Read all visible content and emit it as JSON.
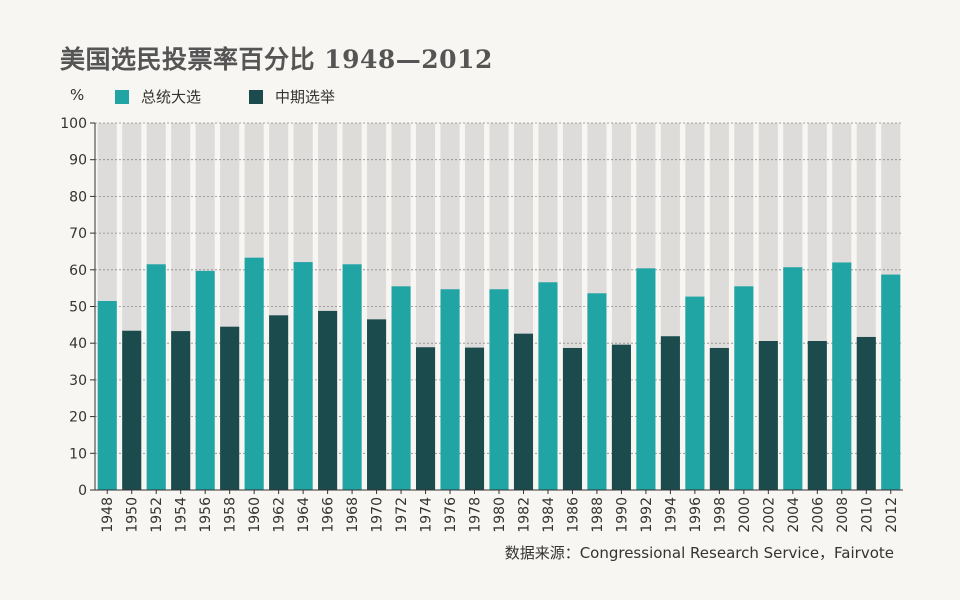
{
  "title": "美国选民投票率百分比 1948—2012",
  "source": "数据来源：Congressional Research Service，Fairvote",
  "colors": {
    "presidential": "#21a4a4",
    "midterm": "#1b4b4c",
    "background_bar": "#dedcdb",
    "page_background": "#f8f6f2"
  },
  "chart_data": {
    "type": "bar",
    "y_unit_label": "%",
    "ylim": [
      0,
      100
    ],
    "yticks": [
      0,
      10,
      20,
      30,
      40,
      50,
      60,
      70,
      80,
      90,
      100
    ],
    "grid": true,
    "legend_position": "top-left",
    "legend": [
      {
        "key": "presidential",
        "label": "总统大选"
      },
      {
        "key": "midterm",
        "label": "中期选举"
      }
    ],
    "categories": [
      "1948",
      "1950",
      "1952",
      "1954",
      "1956",
      "1958",
      "1960",
      "1962",
      "1964",
      "1966",
      "1968",
      "1970",
      "1972",
      "1974",
      "1976",
      "1978",
      "1980",
      "1982",
      "1984",
      "1986",
      "1988",
      "1990",
      "1992",
      "1994",
      "1996",
      "1998",
      "2000",
      "2002",
      "2004",
      "2006",
      "2008",
      "2010",
      "2012"
    ],
    "values": [
      51.5,
      43.4,
      61.5,
      43.3,
      59.7,
      44.5,
      63.3,
      47.6,
      62.1,
      48.8,
      61.5,
      46.5,
      55.5,
      38.9,
      54.7,
      38.8,
      54.7,
      42.6,
      56.6,
      38.7,
      53.6,
      39.6,
      60.4,
      41.9,
      52.7,
      38.7,
      55.5,
      40.6,
      60.7,
      40.6,
      62.0,
      41.7,
      58.7
    ],
    "series_type": [
      "presidential",
      "midterm",
      "presidential",
      "midterm",
      "presidential",
      "midterm",
      "presidential",
      "midterm",
      "presidential",
      "midterm",
      "presidential",
      "midterm",
      "presidential",
      "midterm",
      "presidential",
      "midterm",
      "presidential",
      "midterm",
      "presidential",
      "midterm",
      "presidential",
      "midterm",
      "presidential",
      "midterm",
      "presidential",
      "midterm",
      "presidential",
      "midterm",
      "presidential",
      "midterm",
      "presidential",
      "midterm",
      "presidential"
    ]
  }
}
